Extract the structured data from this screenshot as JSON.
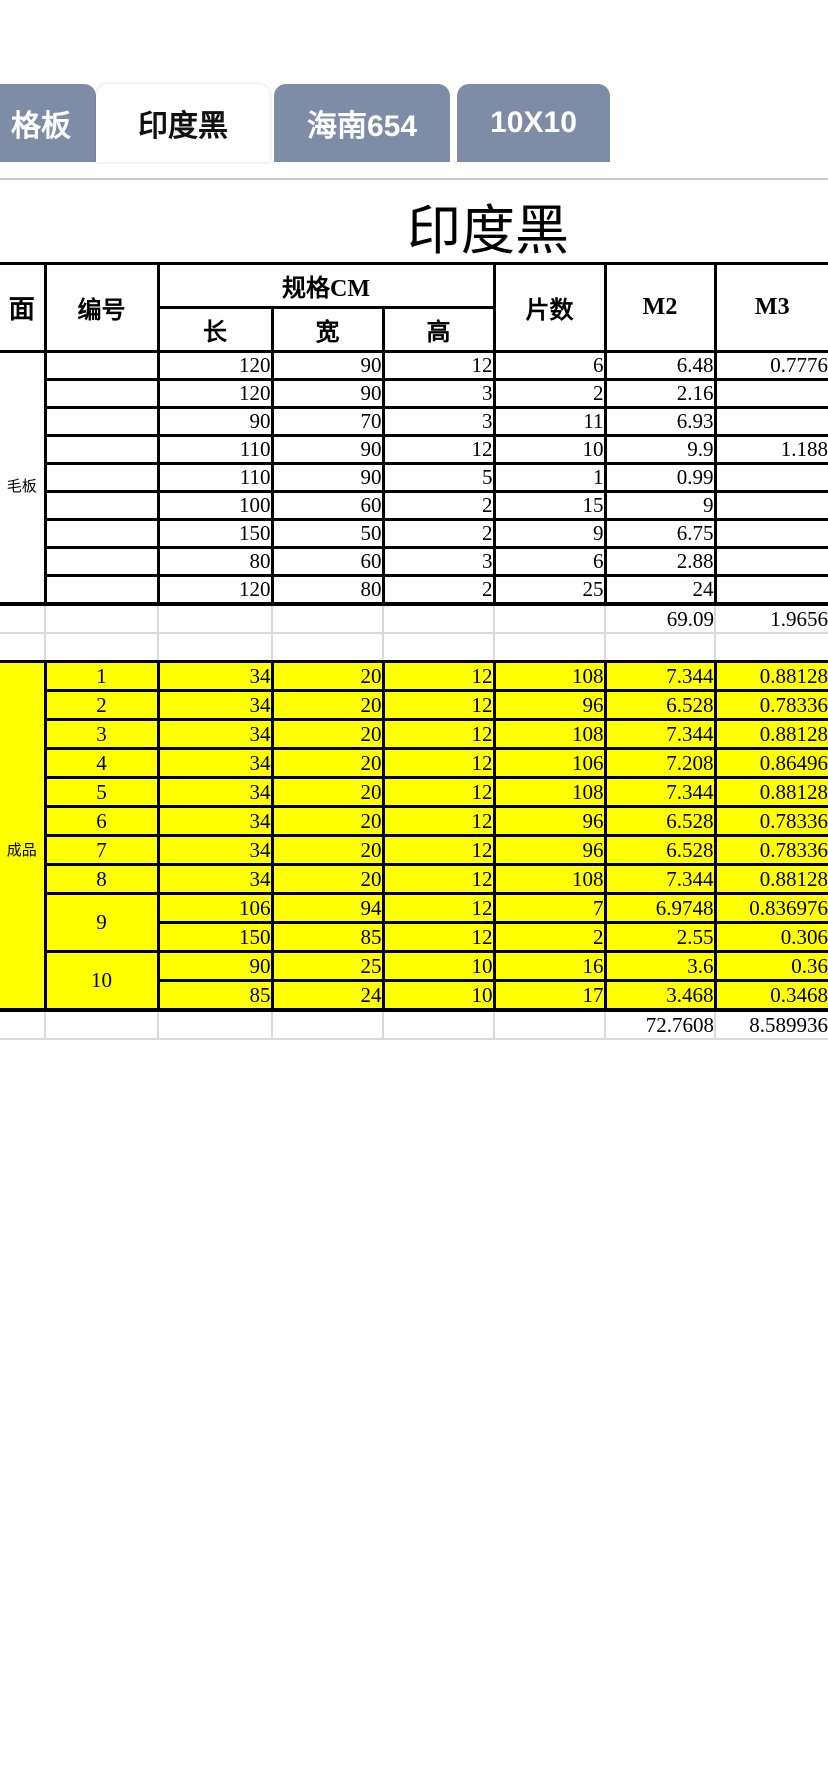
{
  "tabs": [
    {
      "label": "格板",
      "active": false
    },
    {
      "label": "印度黑",
      "active": true
    },
    {
      "label": "海南654",
      "active": false
    },
    {
      "label": "10X10",
      "active": false
    }
  ],
  "title": "印度黑",
  "colors": {
    "tab_inactive": "#7e8ca8",
    "tab_active": "#ffffff",
    "highlight": "#ffff00"
  },
  "table": {
    "headers": {
      "col_face": "面",
      "col_number": "编号",
      "col_spec": "规格CM",
      "col_length": "长",
      "col_width": "宽",
      "col_height": "高",
      "col_pieces": "片数",
      "col_m2": "M2",
      "col_m3": "M3"
    },
    "section1": {
      "label": "毛板",
      "rows": [
        [
          "120",
          "90",
          "12",
          "6",
          "6.48",
          "0.7776"
        ],
        [
          "120",
          "90",
          "3",
          "2",
          "2.16",
          ""
        ],
        [
          "90",
          "70",
          "3",
          "11",
          "6.93",
          ""
        ],
        [
          "110",
          "90",
          "12",
          "10",
          "9.9",
          "1.188"
        ],
        [
          "110",
          "90",
          "5",
          "1",
          "0.99",
          ""
        ],
        [
          "100",
          "60",
          "2",
          "15",
          "9",
          ""
        ],
        [
          "150",
          "50",
          "2",
          "9",
          "6.75",
          ""
        ],
        [
          "80",
          "60",
          "3",
          "6",
          "2.88",
          ""
        ],
        [
          "120",
          "80",
          "2",
          "25",
          "24",
          ""
        ]
      ],
      "total_m2": "69.09",
      "total_m3": "1.9656"
    },
    "section2": {
      "label": "成品",
      "groups": [
        {
          "no": "1",
          "rows": [
            [
              "34",
              "20",
              "12",
              "108",
              "7.344",
              "0.88128"
            ]
          ]
        },
        {
          "no": "2",
          "rows": [
            [
              "34",
              "20",
              "12",
              "96",
              "6.528",
              "0.78336"
            ]
          ]
        },
        {
          "no": "3",
          "rows": [
            [
              "34",
              "20",
              "12",
              "108",
              "7.344",
              "0.88128"
            ]
          ]
        },
        {
          "no": "4",
          "rows": [
            [
              "34",
              "20",
              "12",
              "106",
              "7.208",
              "0.86496"
            ]
          ]
        },
        {
          "no": "5",
          "rows": [
            [
              "34",
              "20",
              "12",
              "108",
              "7.344",
              "0.88128"
            ]
          ]
        },
        {
          "no": "6",
          "rows": [
            [
              "34",
              "20",
              "12",
              "96",
              "6.528",
              "0.78336"
            ]
          ]
        },
        {
          "no": "7",
          "rows": [
            [
              "34",
              "20",
              "12",
              "96",
              "6.528",
              "0.78336"
            ]
          ]
        },
        {
          "no": "8",
          "rows": [
            [
              "34",
              "20",
              "12",
              "108",
              "7.344",
              "0.88128"
            ]
          ]
        },
        {
          "no": "9",
          "rows": [
            [
              "106",
              "94",
              "12",
              "7",
              "6.9748",
              "0.836976"
            ],
            [
              "150",
              "85",
              "12",
              "2",
              "2.55",
              "0.306"
            ]
          ]
        },
        {
          "no": "10",
          "rows": [
            [
              "90",
              "25",
              "10",
              "16",
              "3.6",
              "0.36"
            ],
            [
              "85",
              "24",
              "10",
              "17",
              "3.468",
              "0.3468"
            ]
          ]
        }
      ],
      "total_m2": "72.7608",
      "total_m3": "8.589936"
    }
  }
}
